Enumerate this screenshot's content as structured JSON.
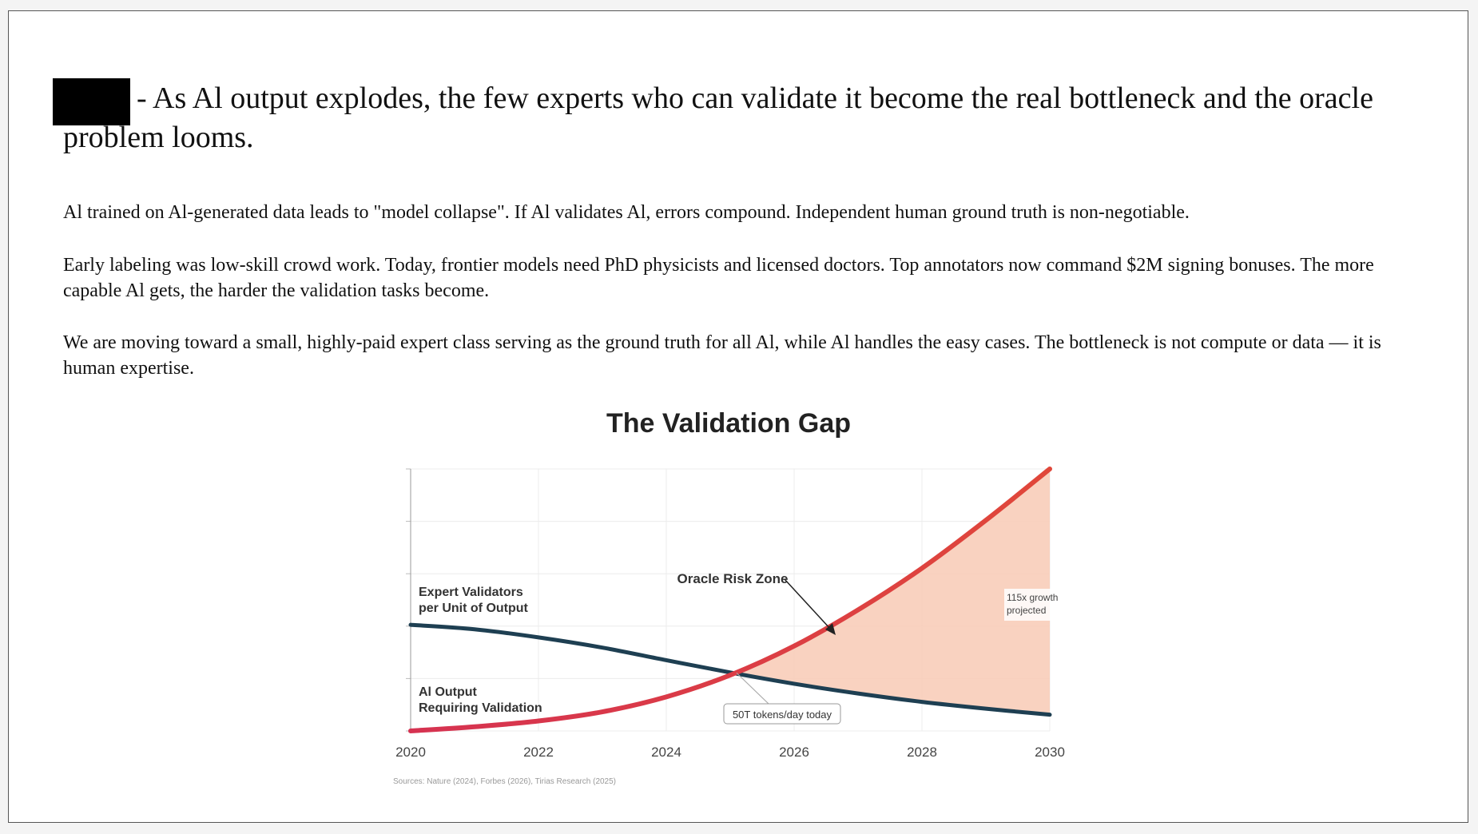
{
  "headline": "- As Al output explodes, the few experts who can validate it become the real bottleneck and the oracle problem looms.",
  "paragraphs": [
    "Al trained on Al-generated data leads to \"model collapse\". If Al validates Al, errors compound. Independent human ground truth is non-negotiable.",
    "Early labeling was low-skill crowd work. Today, frontier models need PhD physicists and licensed doctors. Top annotators now command $2M signing bonuses. The more capable Al gets, the harder the validation tasks become.",
    "We are moving toward a small, highly-paid expert class serving as the ground truth for all Al, while Al handles the easy cases. The bottleneck is not compute or data — it is human expertise."
  ],
  "chart_data": {
    "type": "line",
    "title": "The Validation Gap",
    "x": [
      2020,
      2021,
      2022,
      2023,
      2024,
      2025,
      2026,
      2027,
      2028,
      2029,
      2030
    ],
    "xticks": [
      "2020",
      "2022",
      "2024",
      "2026",
      "2028",
      "2030"
    ],
    "ylim": [
      0,
      100
    ],
    "series": [
      {
        "name": "Expert Validators per Unit of Output",
        "label_lines": [
          "Expert Validators",
          "per Unit of Output"
        ],
        "color": "#1e3f52",
        "values": [
          40.5,
          38.8,
          35.7,
          31.8,
          27,
          22.3,
          18,
          14.3,
          11.1,
          8.5,
          6.2
        ]
      },
      {
        "name": "AI Output Requiring Validation",
        "label_lines": [
          "Al Output",
          "Requiring Validation"
        ],
        "color": "#e0473a",
        "color_start": "#d63251",
        "values": [
          0,
          1.6,
          3.8,
          7.3,
          13,
          21.3,
          32.4,
          46.2,
          62.1,
          80.4,
          100
        ]
      }
    ],
    "fill": {
      "name": "Oracle Risk Zone",
      "color": "#f8cdb9",
      "from_x": 2025.1
    },
    "annotations": {
      "zone_label": "Oracle Risk Zone",
      "crossover_label": "50T tokens/day today",
      "growth_label_lines": [
        "115x growth",
        "projected"
      ]
    },
    "source": "Sources: Nature (2024), Forbes (2026), Tirias Research (2025)",
    "grid": true
  }
}
